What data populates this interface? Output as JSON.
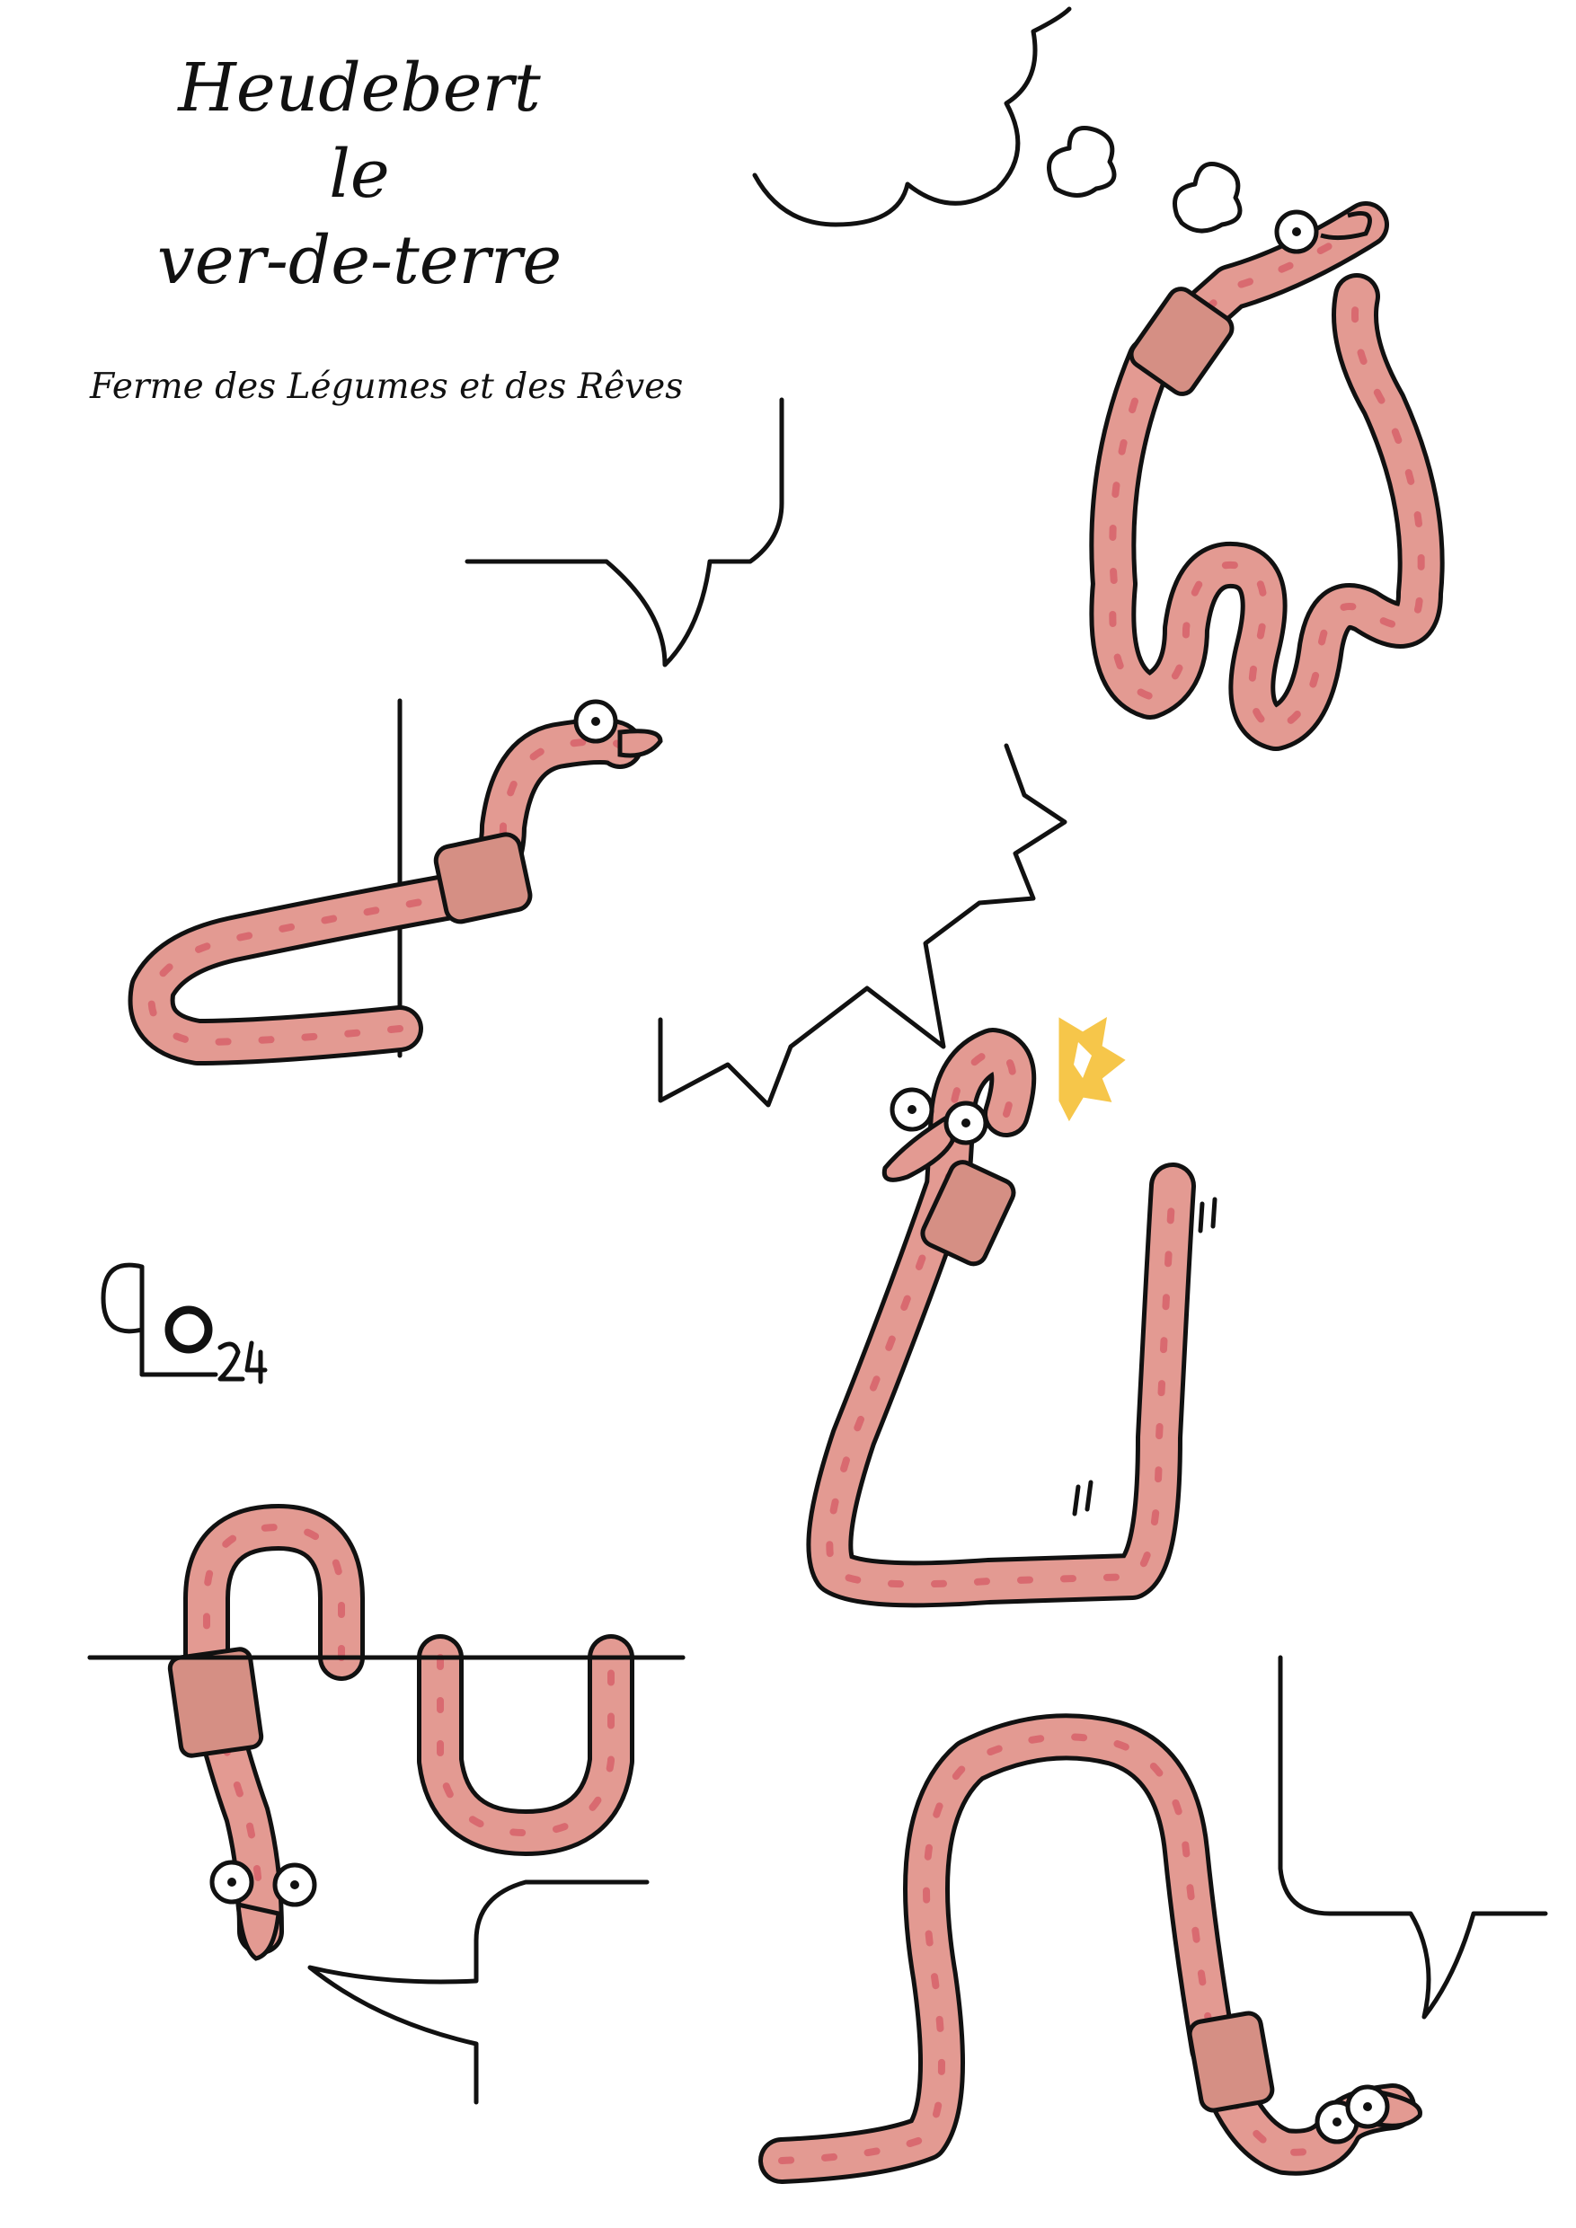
{
  "title_lines": [
    "Heudebert",
    "le",
    "ver-de-terre"
  ],
  "subtitle": "Ferme des Légumes et des Rêves",
  "signature_text": "Lo24",
  "colors": {
    "ink": "#111111",
    "worm_body": "#e39a92",
    "worm_stripe": "#d96a70",
    "worm_band": "#d58f84",
    "impact": "#f6c64a",
    "paper": "#ffffff"
  },
  "icons": [
    "worm-icon",
    "speech-bubble-icon",
    "thought-cloud-icon",
    "shout-bubble-icon",
    "impact-burst-icon",
    "signature-icon"
  ]
}
